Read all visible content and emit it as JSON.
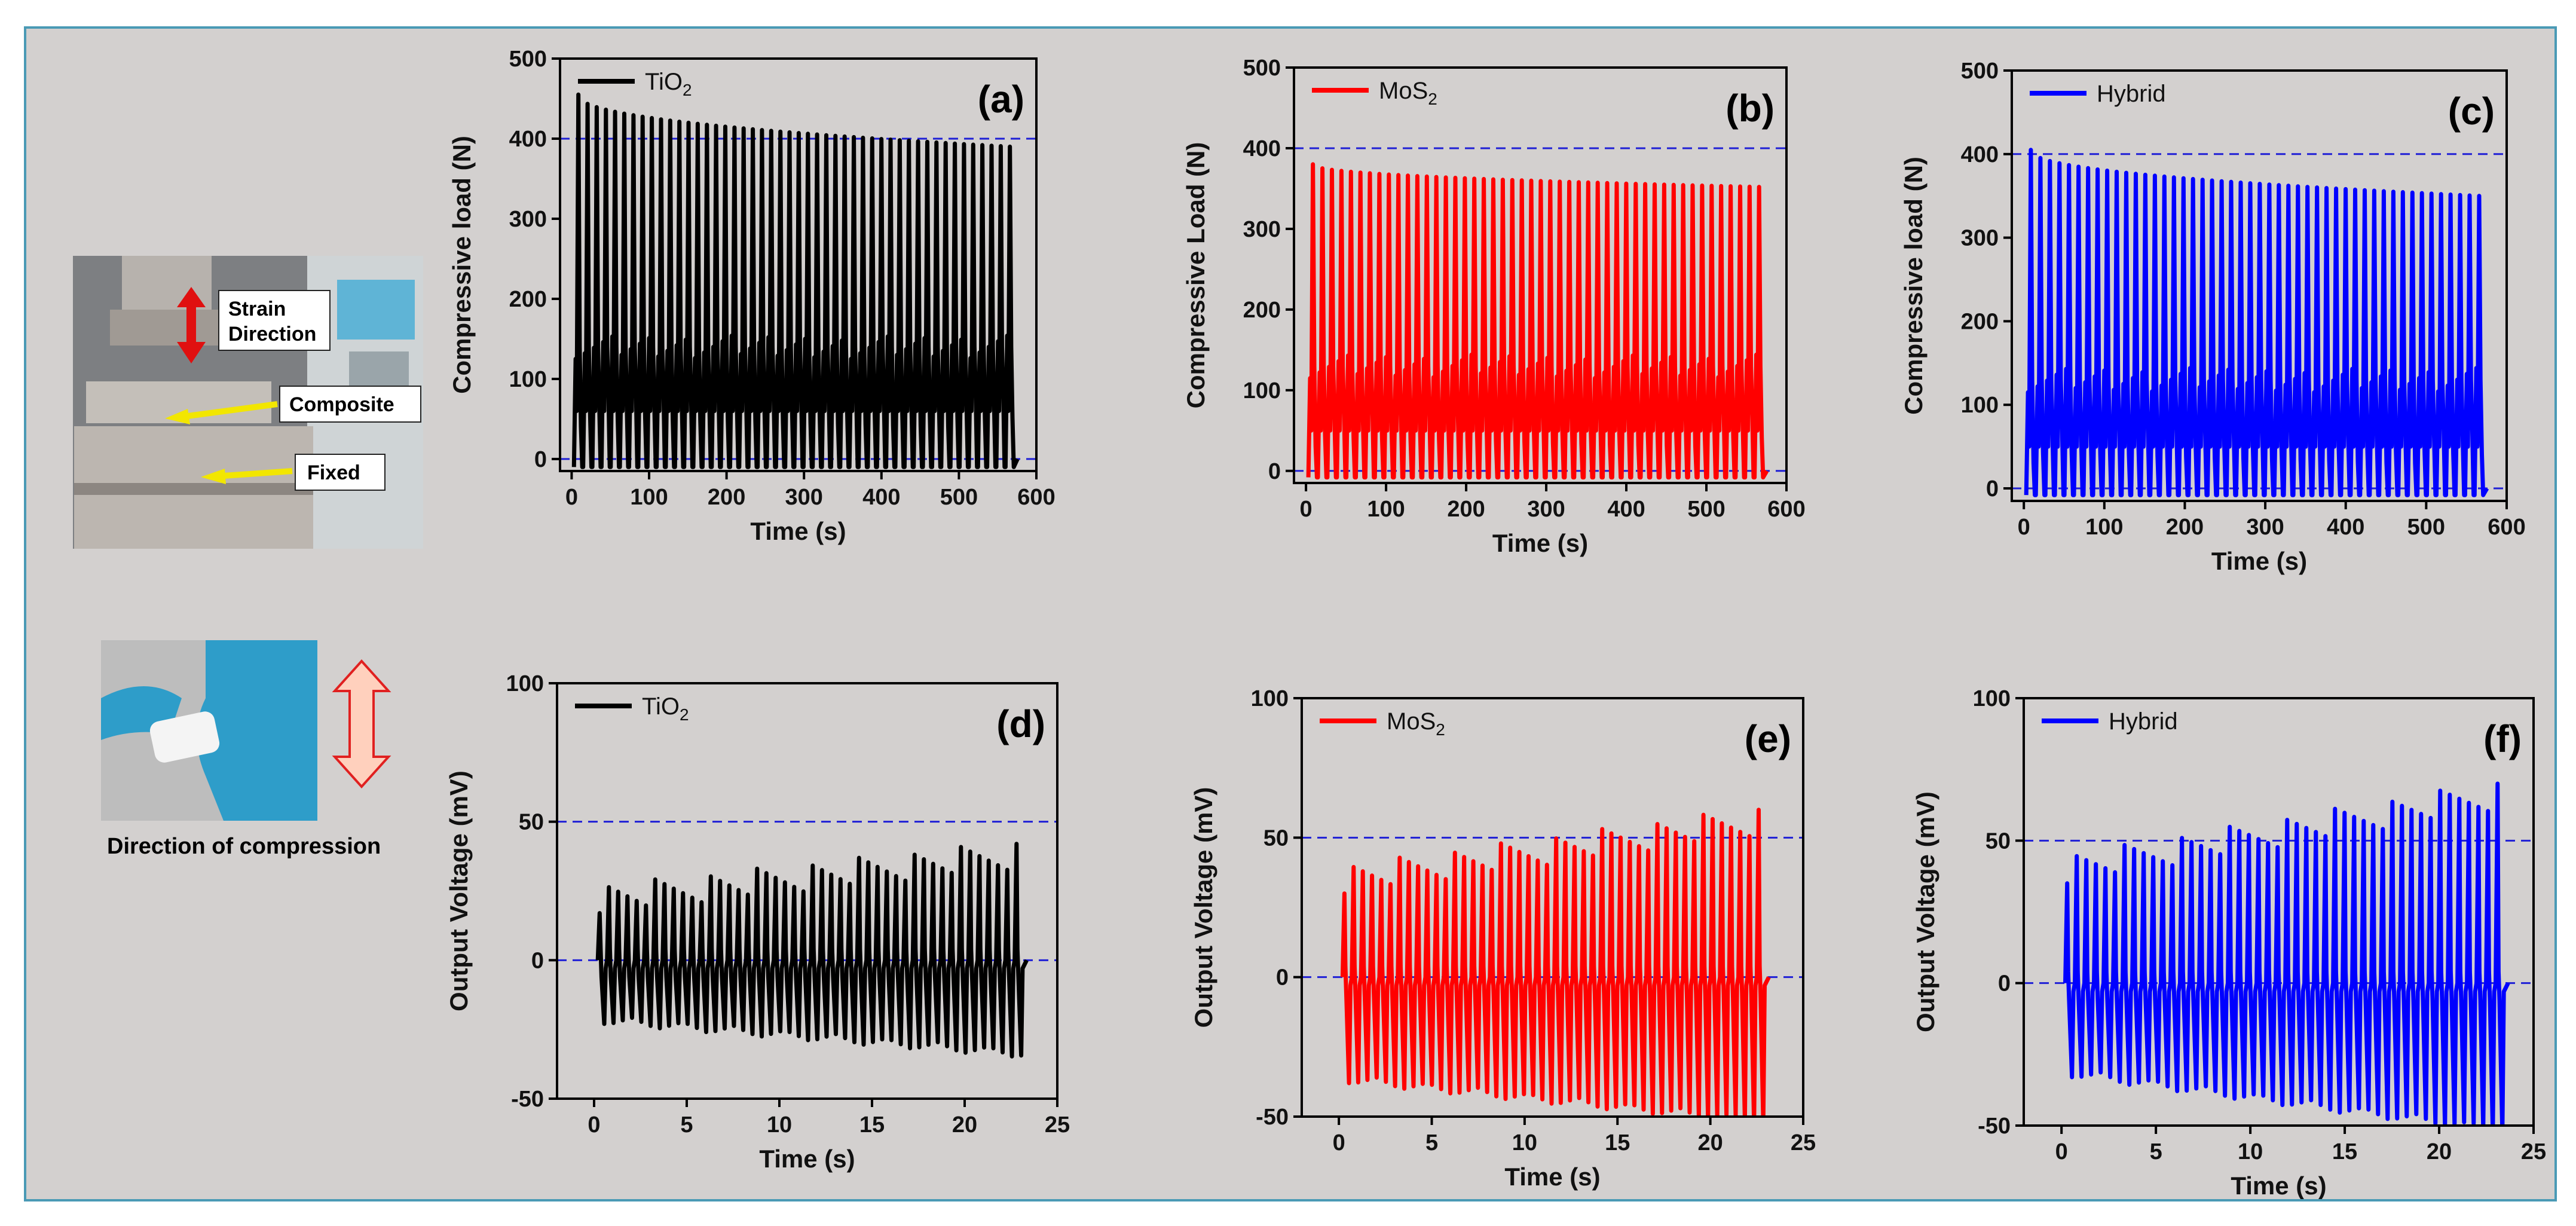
{
  "figure": {
    "caption": "Direction of compression",
    "photo_labels": {
      "strain": "Strain",
      "direction": "Direction",
      "composite": "Composite",
      "fixed": "Fixed"
    }
  },
  "colors": {
    "TiO2": "#000000",
    "MoS2": "#ff0000",
    "Hybrid": "#0000ff",
    "grid": "#1f1fd6"
  },
  "chart_data": [
    {
      "id": "a",
      "type": "line",
      "panel_label": "(a)",
      "xlabel": "Time (s)",
      "ylabel": "Compressive load (N)",
      "xlim": [
        -15,
        600
      ],
      "ylim": [
        -15,
        500
      ],
      "xticks": [
        0,
        100,
        200,
        300,
        400,
        500,
        600
      ],
      "yticks": [
        0,
        100,
        200,
        300,
        400,
        500
      ],
      "reference_lines": [
        0,
        400
      ],
      "legend": {
        "prefix": "TiO",
        "sub": "2",
        "suffix": ""
      },
      "color_key": "TiO2",
      "signal": {
        "x_start": 3,
        "x_end": 572,
        "cycles": 48,
        "peak_start": 455,
        "peak_end": 390,
        "baseline": -10,
        "inner_low": 60,
        "inner_high": 140
      }
    },
    {
      "id": "b",
      "type": "line",
      "panel_label": "(b)",
      "xlabel": "Time (s)",
      "ylabel": "Compressive Load (N)",
      "xlim": [
        -15,
        600
      ],
      "ylim": [
        -15,
        500
      ],
      "xticks": [
        0,
        100,
        200,
        300,
        400,
        500,
        600
      ],
      "yticks": [
        0,
        100,
        200,
        300,
        400,
        500
      ],
      "reference_lines": [
        0,
        400
      ],
      "legend": {
        "prefix": "MoS",
        "sub": "2",
        "suffix": ""
      },
      "color_key": "MoS2",
      "signal": {
        "x_start": 3,
        "x_end": 572,
        "cycles": 48,
        "peak_start": 380,
        "peak_end": 352,
        "baseline": -8,
        "inner_low": 50,
        "inner_high": 130
      }
    },
    {
      "id": "c",
      "type": "line",
      "panel_label": "(c)",
      "xlabel": "Time (s)",
      "ylabel": "Compressive load (N)",
      "xlim": [
        -15,
        600
      ],
      "ylim": [
        -15,
        500
      ],
      "xticks": [
        0,
        100,
        200,
        300,
        400,
        500,
        600
      ],
      "yticks": [
        0,
        100,
        200,
        300,
        400,
        500
      ],
      "reference_lines": [
        0,
        400
      ],
      "legend": {
        "prefix": "Hybrid",
        "sub": "",
        "suffix": ""
      },
      "color_key": "Hybrid",
      "signal": {
        "x_start": 3,
        "x_end": 572,
        "cycles": 48,
        "peak_start": 405,
        "peak_end": 350,
        "baseline": -8,
        "inner_low": 50,
        "inner_high": 130
      }
    },
    {
      "id": "d",
      "type": "line",
      "panel_label": "(d)",
      "xlabel": "Time (s)",
      "ylabel": "Output Voltage (mV)",
      "xlim": [
        -2,
        25
      ],
      "ylim": [
        -50,
        100
      ],
      "xticks": [
        0,
        5,
        10,
        15,
        20,
        25
      ],
      "yticks": [
        -50,
        0,
        50,
        100
      ],
      "reference_lines": [
        0,
        50
      ],
      "legend": {
        "prefix": "TiO",
        "sub": "2",
        "suffix": ""
      },
      "color_key": "TiO2",
      "signal": {
        "x_start": 0.2,
        "x_end": 23.2,
        "cycles": 46,
        "peak_start": 22,
        "peak_end": 38,
        "trough_start": -20,
        "trough_end": -32
      }
    },
    {
      "id": "e",
      "type": "line",
      "panel_label": "(e)",
      "xlabel": "Time (s)",
      "ylabel": "Output Voltage (mV)",
      "xlim": [
        -2,
        25
      ],
      "ylim": [
        -50,
        100
      ],
      "xticks": [
        0,
        5,
        10,
        15,
        20,
        25
      ],
      "yticks": [
        -50,
        0,
        50,
        100
      ],
      "reference_lines": [
        0,
        50
      ],
      "legend": {
        "prefix": "MoS",
        "sub": "2",
        "suffix": ""
      },
      "color_key": "MoS2",
      "signal": {
        "x_start": 0.2,
        "x_end": 23,
        "cycles": 46,
        "peak_start": 35,
        "peak_end": 56,
        "trough_start": -35,
        "trough_end": -50
      }
    },
    {
      "id": "f",
      "type": "line",
      "panel_label": "(f)",
      "xlabel": "Time (s)",
      "ylabel": "Output Voltage (mV)",
      "xlim": [
        -2,
        25
      ],
      "ylim": [
        -50,
        100
      ],
      "xticks": [
        0,
        5,
        10,
        15,
        20,
        25
      ],
      "yticks": [
        -50,
        0,
        50,
        100
      ],
      "reference_lines": [
        0,
        50
      ],
      "legend": {
        "prefix": "Hybrid",
        "sub": "",
        "suffix": ""
      },
      "color_key": "Hybrid",
      "signal": {
        "x_start": 0.2,
        "x_end": 23.5,
        "cycles": 46,
        "peak_start": 40,
        "peak_end": 66,
        "trough_start": -30,
        "trough_end": -50
      }
    }
  ]
}
